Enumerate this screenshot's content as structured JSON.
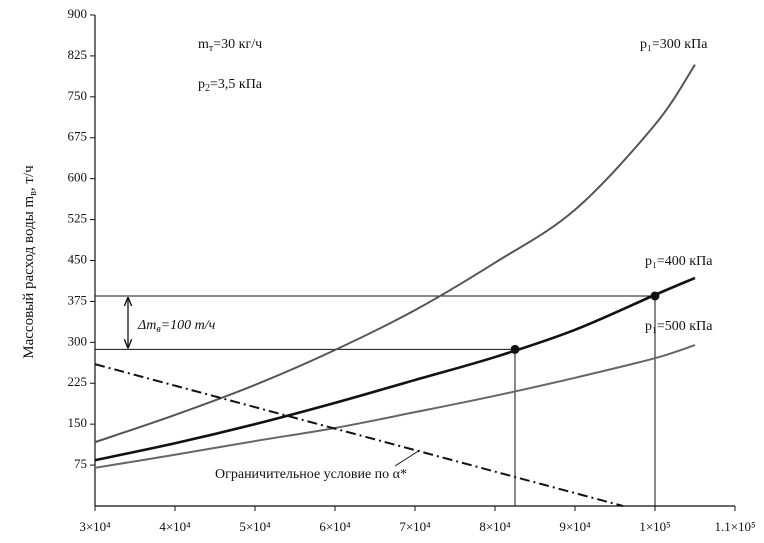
{
  "chart_data": {
    "type": "line",
    "y_label": {
      "main": "Массовый расход воды m",
      "sub": "в",
      "rest": ", т/ч"
    },
    "xlim": [
      30000,
      110000
    ],
    "xticks": [
      {
        "value": 30000,
        "label": "3×10⁴"
      },
      {
        "value": 40000,
        "label": "4×10⁴"
      },
      {
        "value": 50000,
        "label": "5×10⁴"
      },
      {
        "value": 60000,
        "label": "6×10⁴"
      },
      {
        "value": 70000,
        "label": "7×10⁴"
      },
      {
        "value": 80000,
        "label": "8×10⁴"
      },
      {
        "value": 90000,
        "label": "9×10⁴"
      },
      {
        "value": 100000,
        "label": "1×10⁵"
      },
      {
        "value": 110000,
        "label": "1.1×10⁵"
      }
    ],
    "ylim": [
      0,
      900
    ],
    "yticks": [
      75,
      150,
      225,
      300,
      375,
      450,
      525,
      600,
      675,
      750,
      825,
      900
    ],
    "x": [
      30000,
      40000,
      50000,
      60000,
      70000,
      80000,
      90000,
      100000,
      105000
    ],
    "series": [
      {
        "name": "p₁=300 кПа",
        "color": "#555555",
        "values": [
          117,
          167,
          222,
          286,
          359,
          446,
          543,
          699,
          809
        ]
      },
      {
        "name": "p₁=400 кПа",
        "color": "#111111",
        "values": [
          84,
          115,
          150,
          189,
          231,
          273,
          323,
          387,
          418
        ]
      },
      {
        "name": "p₁=500 кПа",
        "color": "#666666",
        "values": [
          70,
          94,
          119,
          143,
          172,
          202,
          235,
          271,
          295
        ]
      }
    ],
    "constraint": {
      "label": "Ограничительное условие по α*",
      "x": [
        30000,
        96000
      ],
      "values": [
        260,
        0
      ],
      "color": "#111111"
    },
    "markers": {
      "x": [
        82500,
        100000
      ],
      "values": [
        287,
        385
      ]
    },
    "delta_label": {
      "main": "Δm",
      "sub": "в",
      "rest": "=100 т/ч"
    },
    "notes": [
      {
        "main": "m",
        "sub": "т",
        "rest": "=30 кг/ч"
      },
      {
        "main": "p",
        "sub": "2",
        "rest": "=3,5 кПа"
      }
    ]
  }
}
